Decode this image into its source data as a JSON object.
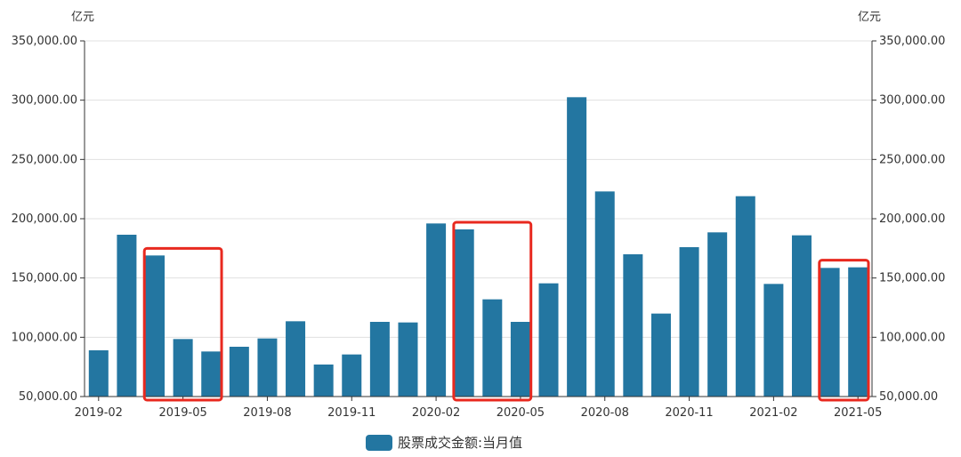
{
  "chart_data": {
    "type": "bar",
    "unit_left": "亿元",
    "unit_right": "亿元",
    "categories": [
      "2019-02",
      "2019-03",
      "2019-04",
      "2019-05",
      "2019-06",
      "2019-07",
      "2019-08",
      "2019-09",
      "2019-10",
      "2019-11",
      "2019-12",
      "2020-01",
      "2020-02",
      "2020-03",
      "2020-04",
      "2020-05",
      "2020-06",
      "2020-07",
      "2020-08",
      "2020-09",
      "2020-10",
      "2020-11",
      "2020-12",
      "2021-01",
      "2021-02",
      "2021-03",
      "2021-04",
      "2021-05"
    ],
    "x_tick_labels": [
      "2019-02",
      "2019-05",
      "2019-08",
      "2019-11",
      "2020-02",
      "2020-05",
      "2020-08",
      "2020-11",
      "2021-02",
      "2021-05"
    ],
    "series": [
      {
        "name": "股票成交金额:当月值",
        "values": [
          89000,
          186500,
          169000,
          98500,
          88000,
          92000,
          99000,
          113500,
          77000,
          85500,
          113000,
          112500,
          196000,
          191000,
          132000,
          113000,
          145500,
          302500,
          223000,
          170000,
          120000,
          176000,
          188500,
          219000,
          145000,
          186000,
          158500,
          159000
        ]
      }
    ],
    "yticks": [
      "350,000.00",
      "300,000.00",
      "250,000.00",
      "200,000.00",
      "150,000.00",
      "100,000.00",
      "50,000.00"
    ],
    "ylim": [
      50000,
      350000
    ],
    "grid": true,
    "legend_position": "bottom-center",
    "highlight_groups": [
      [
        2,
        4
      ],
      [
        13,
        15
      ],
      [
        26,
        27
      ]
    ],
    "colors": {
      "bar": "#2376a1",
      "highlight": "#e8291f",
      "grid": "#e0e0e0",
      "axis": "#333333"
    }
  }
}
